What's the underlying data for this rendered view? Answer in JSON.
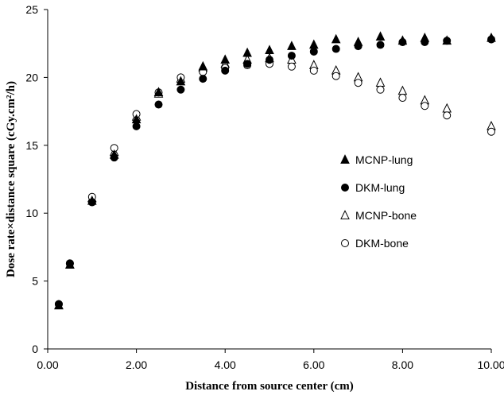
{
  "chart_data": {
    "type": "scatter",
    "xlabel": "Distance from source center (cm)",
    "ylabel": "Dose rate×distance square (cGy.cm²/h)",
    "xlim": [
      0,
      10
    ],
    "ylim": [
      0,
      25
    ],
    "x_ticks": [
      0,
      2,
      4,
      6,
      8,
      10
    ],
    "x_tick_labels": [
      "0.00",
      "2.00",
      "4.00",
      "6.00",
      "8.00",
      "10.00"
    ],
    "y_ticks": [
      0,
      5,
      10,
      15,
      20,
      25
    ],
    "y_tick_labels": [
      "0",
      "5",
      "10",
      "15",
      "20",
      "25"
    ],
    "grid": false,
    "legend_position": "right-center",
    "series": [
      {
        "name": "MCNP-lung",
        "marker": "filled-triangle",
        "color": "#000000",
        "points": [
          [
            0.25,
            3.2
          ],
          [
            0.5,
            6.2
          ],
          [
            1.0,
            10.9
          ],
          [
            1.5,
            14.3
          ],
          [
            2.0,
            16.9
          ],
          [
            2.5,
            18.9
          ],
          [
            3.0,
            19.7
          ],
          [
            3.5,
            20.8
          ],
          [
            4.0,
            21.3
          ],
          [
            4.5,
            21.8
          ],
          [
            5.0,
            22.0
          ],
          [
            5.5,
            22.3
          ],
          [
            6.0,
            22.4
          ],
          [
            6.5,
            22.8
          ],
          [
            7.0,
            22.6
          ],
          [
            7.5,
            23.0
          ],
          [
            8.0,
            22.7
          ],
          [
            8.5,
            22.9
          ],
          [
            9.0,
            22.7
          ],
          [
            10.0,
            22.9
          ]
        ]
      },
      {
        "name": "DKM-lung",
        "marker": "filled-circle",
        "color": "#000000",
        "points": [
          [
            0.25,
            3.3
          ],
          [
            0.5,
            6.3
          ],
          [
            1.0,
            10.8
          ],
          [
            1.5,
            14.1
          ],
          [
            2.0,
            16.4
          ],
          [
            2.5,
            18.0
          ],
          [
            3.0,
            19.1
          ],
          [
            3.5,
            19.9
          ],
          [
            4.0,
            20.5
          ],
          [
            4.5,
            21.0
          ],
          [
            5.0,
            21.3
          ],
          [
            5.5,
            21.6
          ],
          [
            6.0,
            21.9
          ],
          [
            6.5,
            22.1
          ],
          [
            7.0,
            22.3
          ],
          [
            7.5,
            22.4
          ],
          [
            8.0,
            22.6
          ],
          [
            8.5,
            22.6
          ],
          [
            9.0,
            22.7
          ],
          [
            10.0,
            22.8
          ]
        ]
      },
      {
        "name": "MCNP-bone",
        "marker": "open-triangle",
        "color": "#000000",
        "points": [
          [
            0.25,
            3.2
          ],
          [
            0.5,
            6.2
          ],
          [
            1.0,
            11.1
          ],
          [
            1.5,
            14.5
          ],
          [
            2.0,
            17.1
          ],
          [
            2.5,
            18.8
          ],
          [
            3.0,
            19.9
          ],
          [
            3.5,
            20.7
          ],
          [
            4.0,
            21.0
          ],
          [
            4.5,
            21.3
          ],
          [
            5.0,
            21.4
          ],
          [
            5.5,
            21.3
          ],
          [
            6.0,
            20.9
          ],
          [
            6.5,
            20.5
          ],
          [
            7.0,
            20.0
          ],
          [
            7.5,
            19.6
          ],
          [
            8.0,
            19.0
          ],
          [
            8.5,
            18.3
          ],
          [
            9.0,
            17.7
          ],
          [
            10.0,
            16.4
          ]
        ]
      },
      {
        "name": "DKM-bone",
        "marker": "open-circle",
        "color": "#000000",
        "points": [
          [
            0.25,
            3.3
          ],
          [
            0.5,
            6.3
          ],
          [
            1.0,
            11.2
          ],
          [
            1.5,
            14.8
          ],
          [
            2.0,
            17.3
          ],
          [
            2.5,
            18.9
          ],
          [
            3.0,
            20.0
          ],
          [
            3.5,
            20.4
          ],
          [
            4.0,
            20.7
          ],
          [
            4.5,
            20.9
          ],
          [
            5.0,
            21.0
          ],
          [
            5.5,
            20.8
          ],
          [
            6.0,
            20.5
          ],
          [
            6.5,
            20.1
          ],
          [
            7.0,
            19.6
          ],
          [
            7.5,
            19.1
          ],
          [
            8.0,
            18.5
          ],
          [
            8.5,
            17.9
          ],
          [
            9.0,
            17.2
          ],
          [
            10.0,
            16.0
          ]
        ]
      }
    ]
  }
}
